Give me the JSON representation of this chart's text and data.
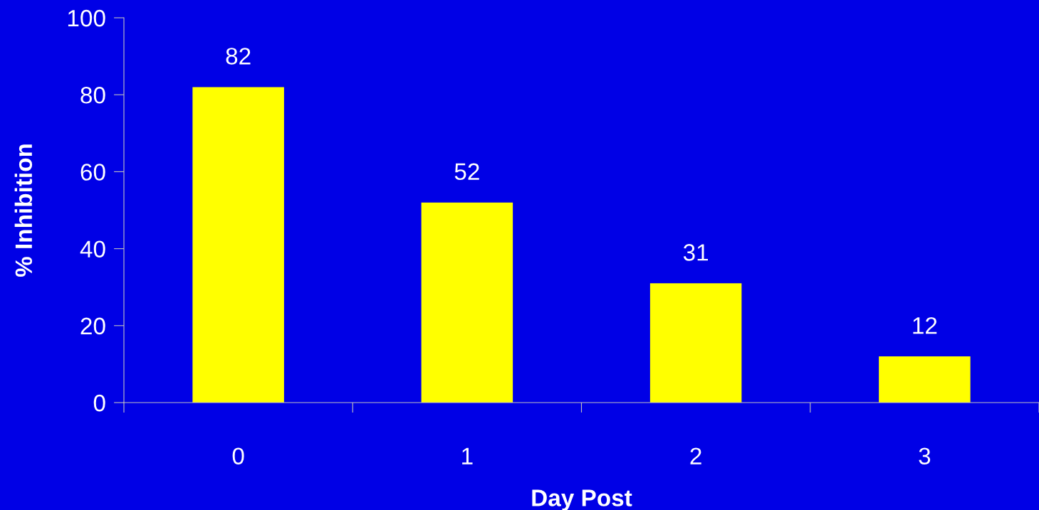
{
  "chart_data": {
    "type": "bar",
    "xlabel": "Day Post",
    "ylabel": "% Inhibition",
    "categories": [
      "0",
      "1",
      "2",
      "3"
    ],
    "values": [
      82,
      52,
      31,
      12
    ],
    "color": "#ffff00",
    "ylim": [
      0,
      100
    ],
    "yticks": [
      0,
      20,
      40,
      60,
      80,
      100
    ],
    "data_labels": true,
    "grid": false,
    "legend": false
  }
}
